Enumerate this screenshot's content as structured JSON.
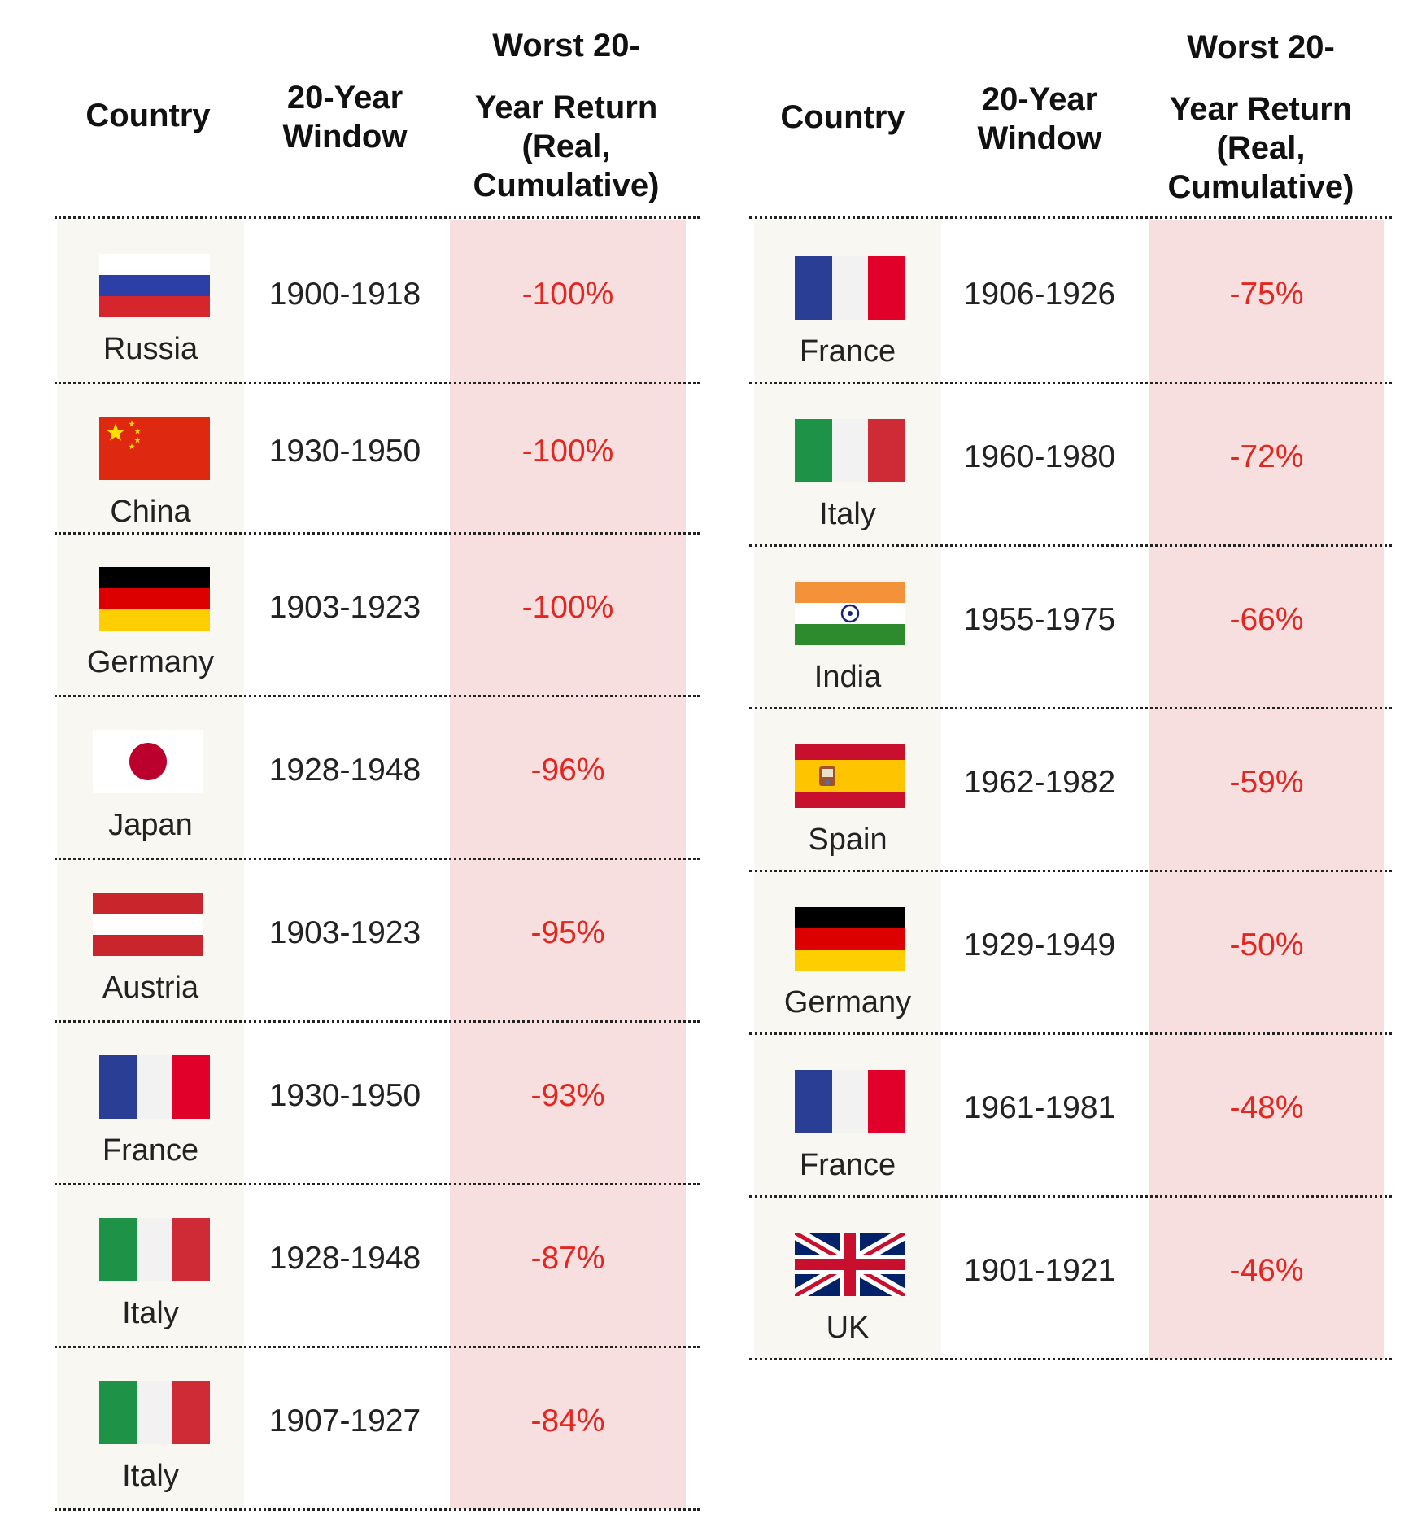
{
  "headers": {
    "country": "Country",
    "window_line1": "20-Year",
    "window_line2": "Window",
    "return_line1": "Worst 20-",
    "return_line2": "Year Return",
    "return_line3": "(Real,",
    "return_line4": "Cumulative)"
  },
  "colors": {
    "country_col_bg": "#f9f7f1",
    "return_col_bg": "#f7dfe0",
    "return_text": "#e3261f"
  },
  "left_table": [
    {
      "country": "Russia",
      "flag": "russia-flag",
      "window": "1900-1918",
      "return": "-100%"
    },
    {
      "country": "China",
      "flag": "china-flag",
      "window": "1930-1950",
      "return": "-100%"
    },
    {
      "country": "Germany",
      "flag": "germany-flag",
      "window": "1903-1923",
      "return": "-100%"
    },
    {
      "country": "Japan",
      "flag": "japan-flag",
      "window": "1928-1948",
      "return": "-96%"
    },
    {
      "country": "Austria",
      "flag": "austria-flag",
      "window": "1903-1923",
      "return": "-95%"
    },
    {
      "country": "France",
      "flag": "france-flag",
      "window": "1930-1950",
      "return": "-93%"
    },
    {
      "country": "Italy",
      "flag": "italy-flag",
      "window": "1928-1948",
      "return": "-87%"
    },
    {
      "country": "Italy",
      "flag": "italy-flag",
      "window": "1907-1927",
      "return": "-84%"
    }
  ],
  "right_table": [
    {
      "country": "France",
      "flag": "france-flag",
      "window": "1906-1926",
      "return": "-75%"
    },
    {
      "country": "Italy",
      "flag": "italy-flag",
      "window": "1960-1980",
      "return": "-72%"
    },
    {
      "country": "India",
      "flag": "india-flag",
      "window": "1955-1975",
      "return": "-66%"
    },
    {
      "country": "Spain",
      "flag": "spain-flag",
      "window": "1962-1982",
      "return": "-59%"
    },
    {
      "country": "Germany",
      "flag": "germany-flag",
      "window": "1929-1949",
      "return": "-50%"
    },
    {
      "country": "France",
      "flag": "france-flag",
      "window": "1961-1981",
      "return": "-48%"
    },
    {
      "country": "UK",
      "flag": "uk-flag",
      "window": "1901-1921",
      "return": "-46%"
    }
  ]
}
